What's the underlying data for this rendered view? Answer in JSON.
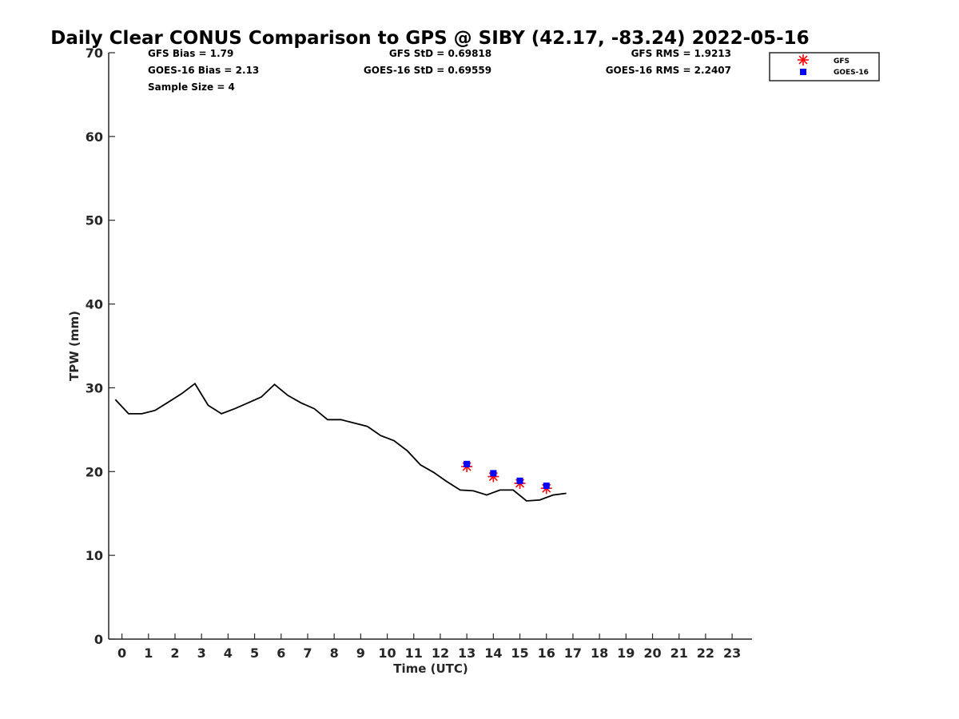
{
  "chart_data": {
    "type": "scatter",
    "title": "Daily Clear CONUS Comparison to GPS @ SIBY (42.17, -83.24) 2022-05-16",
    "xlabel": "Time (UTC)",
    "ylabel": "TPW (mm)",
    "xlim": [
      -0.5,
      23.75
    ],
    "ylim": [
      0,
      70
    ],
    "xticks": [
      0,
      1,
      2,
      3,
      4,
      5,
      6,
      7,
      8,
      9,
      10,
      11,
      12,
      13,
      14,
      15,
      16,
      17,
      18,
      19,
      20,
      21,
      22,
      23
    ],
    "yticks": [
      0,
      10,
      20,
      30,
      40,
      50,
      60,
      70
    ],
    "grid": false,
    "legend_position": "top-right",
    "stats": {
      "gfs_bias": "GFS Bias = 1.79",
      "goes_bias": "GOES-16 Bias = 2.13",
      "sample_size": "Sample Size = 4",
      "gfs_std": "GFS StD = 0.69818",
      "goes_std": "GOES-16 StD = 0.69559",
      "gfs_rms": "GFS RMS = 1.9213",
      "goes_rms": "GOES-16 RMS = 2.2407"
    },
    "series": [
      {
        "key": "gps",
        "style": "line",
        "color": "#000000",
        "x": [
          -0.25,
          0.25,
          0.75,
          1.25,
          1.75,
          2.25,
          2.75,
          3.25,
          3.75,
          4.25,
          4.75,
          5.25,
          5.75,
          6.25,
          6.75,
          7.25,
          7.75,
          8.25,
          8.75,
          9.25,
          9.75,
          10.25,
          10.75,
          11.25,
          11.75,
          12.25,
          12.75,
          13.25,
          13.75,
          14.25,
          14.75,
          15.25,
          15.75,
          16.25,
          16.75
        ],
        "y": [
          28.6,
          26.9,
          26.9,
          27.3,
          28.3,
          29.3,
          30.5,
          27.9,
          26.9,
          27.5,
          28.2,
          28.9,
          30.4,
          29.1,
          28.2,
          27.5,
          26.2,
          26.2,
          25.8,
          25.4,
          24.3,
          23.7,
          22.5,
          20.8,
          19.9,
          18.8,
          17.8,
          17.7,
          17.2,
          17.8,
          17.8,
          16.5,
          16.6,
          17.2,
          17.4
        ]
      },
      {
        "key": "gfs",
        "name": "GFS",
        "style": "asterisk",
        "color": "#ff0000",
        "x": [
          13,
          14,
          15,
          16
        ],
        "y": [
          20.6,
          19.4,
          18.6,
          18.0
        ]
      },
      {
        "key": "goes",
        "name": "GOES-16",
        "style": "square",
        "color": "#0000ff",
        "x": [
          13,
          14,
          15,
          16
        ],
        "y": [
          20.9,
          19.8,
          18.9,
          18.3
        ]
      }
    ]
  }
}
